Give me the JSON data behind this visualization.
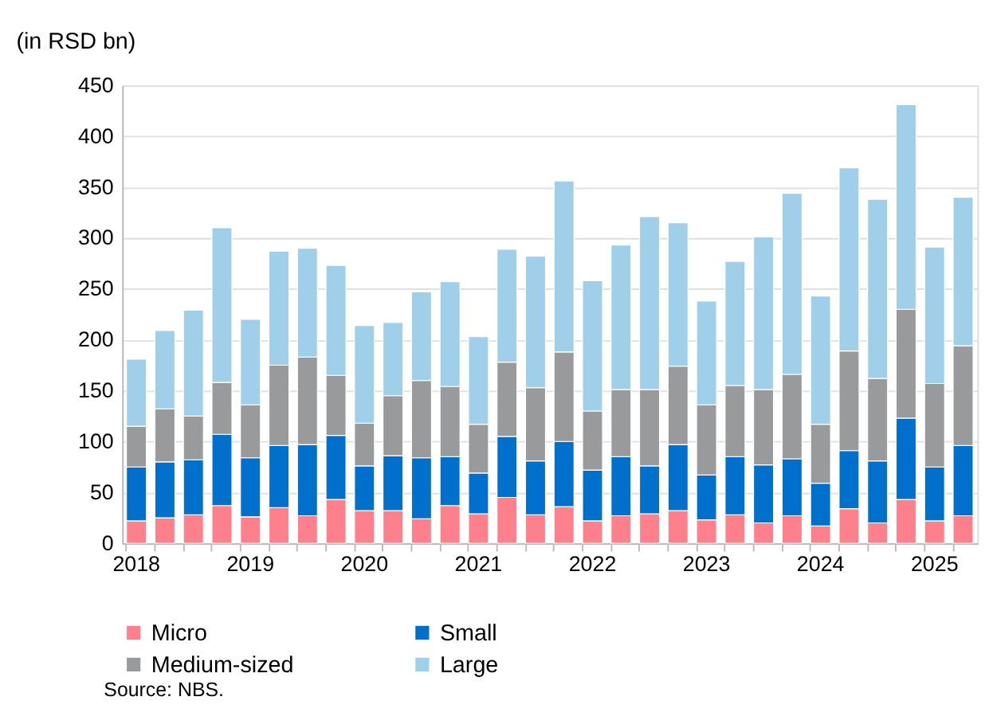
{
  "chart_data": {
    "type": "bar",
    "stacked": true,
    "title": "(in RSD bn)",
    "categories": [
      "2018",
      null,
      null,
      null,
      "2019",
      null,
      null,
      null,
      "2020",
      null,
      null,
      null,
      "2021",
      null,
      null,
      null,
      "2022",
      null,
      null,
      null,
      "2023",
      null,
      null,
      null,
      "2024",
      null,
      null,
      null,
      "2025",
      null
    ],
    "series": [
      {
        "name": "Micro",
        "color": "#ff808d",
        "values": [
          22,
          25,
          28,
          37,
          26,
          35,
          27,
          43,
          32,
          32,
          24,
          37,
          29,
          45,
          28,
          36,
          22,
          27,
          29,
          32,
          23,
          28,
          20,
          27,
          17,
          34,
          20,
          43,
          22,
          27
        ]
      },
      {
        "name": "Small",
        "color": "#0070cc",
        "values": [
          53,
          55,
          54,
          70,
          58,
          61,
          70,
          63,
          44,
          54,
          60,
          48,
          40,
          60,
          53,
          64,
          50,
          58,
          47,
          65,
          44,
          57,
          57,
          56,
          42,
          57,
          61,
          80,
          53,
          69
        ]
      },
      {
        "name": "Medium-sized",
        "color": "#999a9c",
        "values": [
          40,
          52,
          43,
          51,
          52,
          79,
          86,
          59,
          42,
          59,
          76,
          69,
          48,
          73,
          72,
          88,
          58,
          66,
          75,
          77,
          69,
          70,
          74,
          83,
          58,
          98,
          81,
          107,
          82,
          98
        ]
      },
      {
        "name": "Large",
        "color": "#a0cfea",
        "values": [
          66,
          77,
          104,
          152,
          84,
          112,
          107,
          108,
          96,
          72,
          87,
          103,
          86,
          111,
          129,
          168,
          128,
          142,
          170,
          141,
          102,
          122,
          150,
          178,
          126,
          180,
          176,
          201,
          134,
          146
        ]
      }
    ],
    "ylim": [
      0,
      450
    ],
    "yticks": [
      0,
      50,
      100,
      150,
      200,
      250,
      300,
      350,
      400,
      450
    ],
    "grid": "y",
    "legend": "bottom",
    "annotations": [
      "Source: NBS."
    ]
  }
}
